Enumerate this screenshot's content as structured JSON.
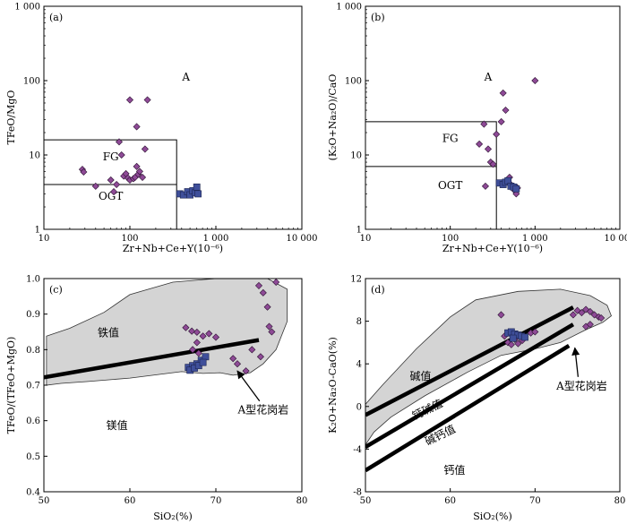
{
  "chart_data": [
    {
      "id": "a",
      "type": "scatter",
      "panel_label": "(a)",
      "xlabel": "Zr+Nb+Ce+Y(10⁻⁶)",
      "ylabel": "TFeO/MgO",
      "xscale": "log",
      "yscale": "log",
      "xlim": [
        10,
        10000
      ],
      "ylim": [
        1,
        1000
      ],
      "xticks": [
        10,
        100,
        1000,
        10000
      ],
      "xtick_labels": [
        "10",
        "100",
        "1 000",
        "10 000"
      ],
      "yticks": [
        1,
        10,
        100,
        1000
      ],
      "ytick_labels": [
        "1",
        "10",
        "100",
        "1 000"
      ],
      "field_labels": [
        {
          "text": "A",
          "x": 450,
          "y": 100
        },
        {
          "text": "FG",
          "x": 60,
          "y": 8.5
        },
        {
          "text": "OGT",
          "x": 60,
          "y": 2.5
        }
      ],
      "boundaries": [
        [
          [
            10,
            16
          ],
          [
            350,
            16
          ],
          [
            350,
            1
          ]
        ],
        [
          [
            10,
            4
          ],
          [
            350,
            4
          ]
        ]
      ],
      "series": [
        {
          "marker": "diamond",
          "color": "#8e4a96",
          "points": [
            [
              28,
              6.4
            ],
            [
              29,
              5.9
            ],
            [
              40,
              3.8
            ],
            [
              60,
              4.6
            ],
            [
              65,
              3.2
            ],
            [
              70,
              4.0
            ],
            [
              75,
              15
            ],
            [
              80,
              10
            ],
            [
              85,
              5.2
            ],
            [
              90,
              5.6
            ],
            [
              95,
              4.9
            ],
            [
              100,
              4.6
            ],
            [
              100,
              55
            ],
            [
              110,
              4.8
            ],
            [
              115,
              5.0
            ],
            [
              120,
              24
            ],
            [
              120,
              7.0
            ],
            [
              125,
              5.5
            ],
            [
              130,
              6.0
            ],
            [
              140,
              5.0
            ],
            [
              160,
              55
            ],
            [
              150,
              12
            ]
          ]
        },
        {
          "marker": "square",
          "color": "#3f4f9a",
          "points": [
            [
              380,
              3.0
            ],
            [
              420,
              2.9
            ],
            [
              470,
              3.2
            ],
            [
              500,
              2.9
            ],
            [
              540,
              3.3
            ],
            [
              580,
              3.1
            ],
            [
              600,
              3.7
            ],
            [
              620,
              3.0
            ]
          ]
        }
      ]
    },
    {
      "id": "b",
      "type": "scatter",
      "panel_label": "(b)",
      "xlabel": "Zr+Nb+Ce+Y(10⁻⁶)",
      "ylabel": "(K₂O+Na₂O)/CaO",
      "xscale": "log",
      "yscale": "log",
      "xlim": [
        10,
        10000
      ],
      "ylim": [
        1,
        1000
      ],
      "xticks": [
        10,
        100,
        1000,
        10000
      ],
      "xtick_labels": [
        "10",
        "100",
        "1 000",
        "10 000"
      ],
      "yticks": [
        1,
        10,
        100,
        1000
      ],
      "ytick_labels": [
        "1",
        "10",
        "100",
        "1 000"
      ],
      "field_labels": [
        {
          "text": "A",
          "x": 280,
          "y": 100
        },
        {
          "text": "FG",
          "x": 100,
          "y": 15
        },
        {
          "text": "OGT",
          "x": 100,
          "y": 3.5
        }
      ],
      "boundaries": [
        [
          [
            10,
            28
          ],
          [
            350,
            28
          ],
          [
            350,
            1
          ]
        ],
        [
          [
            10,
            7
          ],
          [
            350,
            7
          ]
        ]
      ],
      "series": [
        {
          "marker": "diamond",
          "color": "#8e4a96",
          "points": [
            [
              220,
              14
            ],
            [
              250,
              26
            ],
            [
              280,
              12
            ],
            [
              300,
              8.0
            ],
            [
              320,
              7.5
            ],
            [
              260,
              3.8
            ],
            [
              350,
              19
            ],
            [
              400,
              28
            ],
            [
              420,
              68
            ],
            [
              450,
              40
            ],
            [
              500,
              5.0
            ],
            [
              520,
              4.0
            ],
            [
              550,
              3.8
            ],
            [
              580,
              3.3
            ],
            [
              600,
              3.0
            ],
            [
              620,
              3.6
            ],
            [
              1000,
              100
            ]
          ]
        },
        {
          "marker": "square",
          "color": "#3f4f9a",
          "points": [
            [
              380,
              4.2
            ],
            [
              420,
              4.0
            ],
            [
              450,
              4.3
            ],
            [
              480,
              4.5
            ],
            [
              520,
              3.8
            ],
            [
              560,
              3.7
            ],
            [
              600,
              3.5
            ]
          ]
        }
      ]
    },
    {
      "id": "c",
      "type": "scatter",
      "panel_label": "(c)",
      "xlabel": "SiO₂(%)",
      "ylabel": "TFeO/(TFeO+MgO)",
      "xlim": [
        50,
        80
      ],
      "ylim": [
        0.4,
        1.0
      ],
      "xticks": [
        50,
        60,
        70,
        80
      ],
      "yticks": [
        0.4,
        0.5,
        0.6,
        0.7,
        0.8,
        0.9,
        1.0
      ],
      "ytick_labels": [
        "0.4",
        "0.5",
        "0.6",
        "0.7",
        "0.8",
        "0.9",
        "1.0"
      ],
      "field_labels": [
        {
          "text": "铁值",
          "x": 57.5,
          "y": 0.838
        },
        {
          "text": "镁值",
          "x": 58.5,
          "y": 0.577
        }
      ],
      "shaded_region": [
        [
          50.3,
          0.838
        ],
        [
          53,
          0.86
        ],
        [
          57,
          0.905
        ],
        [
          60,
          0.955
        ],
        [
          65,
          0.99
        ],
        [
          70,
          1.0
        ],
        [
          76,
          1.0
        ],
        [
          78.3,
          0.97
        ],
        [
          78.3,
          0.88
        ],
        [
          77,
          0.8
        ],
        [
          75.5,
          0.76
        ],
        [
          74,
          0.735
        ],
        [
          72,
          0.728
        ],
        [
          70.5,
          0.735
        ],
        [
          68.5,
          0.733
        ],
        [
          66,
          0.738
        ],
        [
          60,
          0.72
        ],
        [
          55,
          0.71
        ],
        [
          52,
          0.705
        ],
        [
          50.3,
          0.7
        ]
      ],
      "boundary_line": [
        [
          50,
          0.722
        ],
        [
          75,
          0.827
        ]
      ],
      "annotation": {
        "text": "A型花岗岩",
        "label_x": 75.5,
        "label_y": 0.62,
        "arrow_to": [
          72.5,
          0.74
        ]
      },
      "series": [
        {
          "marker": "diamond",
          "color": "#8e4a96",
          "points": [
            [
              66.5,
              0.862
            ],
            [
              67.2,
              0.852
            ],
            [
              67.8,
              0.849
            ],
            [
              68.5,
              0.838
            ],
            [
              69.2,
              0.845
            ],
            [
              70,
              0.835
            ],
            [
              67.3,
              0.8
            ],
            [
              67.8,
              0.82
            ],
            [
              68,
              0.79
            ],
            [
              72,
              0.775
            ],
            [
              72.5,
              0.76
            ],
            [
              73.5,
              0.74
            ],
            [
              74.2,
              0.8
            ],
            [
              75,
              0.98
            ],
            [
              75.5,
              0.96
            ],
            [
              76,
              0.92
            ],
            [
              76.2,
              0.865
            ],
            [
              76.5,
              0.85
            ],
            [
              75.2,
              0.78
            ],
            [
              77,
              0.99
            ]
          ]
        },
        {
          "marker": "square",
          "color": "#3f4f9a",
          "points": [
            [
              66.8,
              0.75
            ],
            [
              67.3,
              0.755
            ],
            [
              67.8,
              0.76
            ],
            [
              68.3,
              0.77
            ],
            [
              68.8,
              0.78
            ],
            [
              67,
              0.742
            ],
            [
              67.5,
              0.748
            ],
            [
              68,
              0.755
            ],
            [
              68.5,
              0.764
            ]
          ]
        }
      ]
    },
    {
      "id": "d",
      "type": "scatter",
      "panel_label": "(d)",
      "xlabel": "SiO₂(%)",
      "ylabel": "K₂O+Na₂O-CaO(%)",
      "xlim": [
        50,
        80
      ],
      "ylim": [
        -8,
        12
      ],
      "xticks": [
        50,
        60,
        70,
        80
      ],
      "yticks": [
        -8,
        -4,
        0,
        4,
        8,
        12
      ],
      "field_labels": [
        {
          "text": "碱值",
          "x": 56.5,
          "y": 2.5
        },
        {
          "text": "钙碱值",
          "x": 57.5,
          "y": -0.6,
          "rotate": -26
        },
        {
          "text": "碱钙值",
          "x": 59.0,
          "y": -3.0,
          "rotate": -26
        },
        {
          "text": "钙值",
          "x": 60.5,
          "y": -6.3
        }
      ],
      "shaded_region": [
        [
          50,
          -3.6
        ],
        [
          51,
          -2.4
        ],
        [
          53,
          -1.0
        ],
        [
          57,
          1.0
        ],
        [
          62,
          3.2
        ],
        [
          66,
          4.8
        ],
        [
          70,
          5.4
        ],
        [
          73,
          6.0
        ],
        [
          76,
          7.2
        ],
        [
          78,
          7.9
        ],
        [
          79,
          8.5
        ],
        [
          78.5,
          9.5
        ],
        [
          76.5,
          10.4
        ],
        [
          73,
          11.0
        ],
        [
          68,
          10.8
        ],
        [
          63,
          10.0
        ],
        [
          60,
          8.4
        ],
        [
          56,
          5.4
        ],
        [
          52,
          2.0
        ],
        [
          50,
          0.2
        ]
      ],
      "boundary_lines": [
        [
          [
            50,
            -0.8
          ],
          [
            74.5,
            9.3
          ]
        ],
        [
          [
            50,
            -3.8
          ],
          [
            74.5,
            7.7
          ]
        ],
        [
          [
            50,
            -6.0
          ],
          [
            74.0,
            5.7
          ]
        ]
      ],
      "annotation": {
        "text": "A型花岗岩",
        "label_x": 75.5,
        "label_y": 1.6,
        "arrow_to": [
          74.7,
          5.5
        ]
      },
      "series": [
        {
          "marker": "diamond",
          "color": "#8e4a96",
          "points": [
            [
              66,
              8.6
            ],
            [
              66.4,
              6.6
            ],
            [
              66.8,
              6.0
            ],
            [
              67.2,
              5.8
            ],
            [
              67.6,
              6.3
            ],
            [
              68,
              5.9
            ],
            [
              68.5,
              6.2
            ],
            [
              69.5,
              6.9
            ],
            [
              70,
              7.0
            ],
            [
              74.5,
              8.6
            ],
            [
              75,
              9.0
            ],
            [
              75.5,
              8.8
            ],
            [
              76,
              9.1
            ],
            [
              76.5,
              8.9
            ],
            [
              77,
              8.6
            ],
            [
              77.5,
              8.4
            ],
            [
              76,
              7.5
            ],
            [
              76.5,
              7.7
            ],
            [
              77.8,
              8.3
            ]
          ]
        },
        {
          "marker": "square",
          "color": "#3f4f9a",
          "points": [
            [
              66.8,
              6.9
            ],
            [
              67.2,
              7.0
            ],
            [
              67.6,
              6.8
            ],
            [
              68,
              6.7
            ],
            [
              68.4,
              6.6
            ],
            [
              68.8,
              6.5
            ],
            [
              67.4,
              6.4
            ]
          ]
        }
      ]
    }
  ]
}
